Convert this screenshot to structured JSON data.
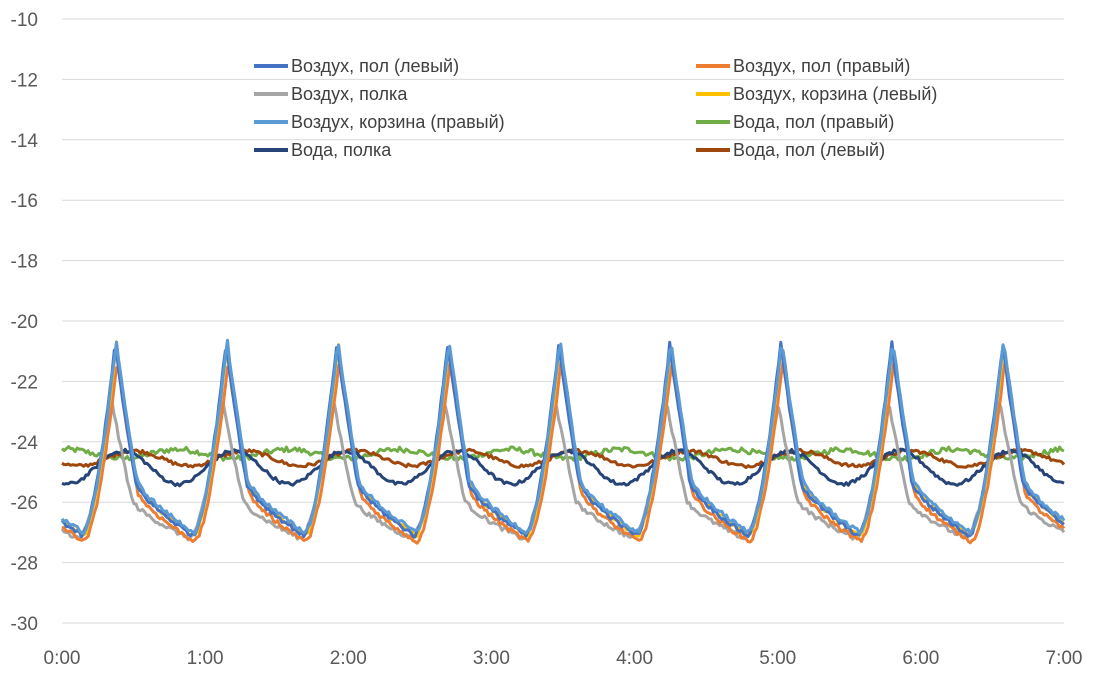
{
  "chart_data": {
    "type": "line",
    "title": "",
    "xlabel": "",
    "ylabel": "",
    "xlim": [
      0,
      7
    ],
    "ylim": [
      -30,
      -10
    ],
    "yticks": [
      -10,
      -12,
      -14,
      -16,
      -18,
      -20,
      -22,
      -24,
      -26,
      -28,
      -30
    ],
    "xtick_labels": [
      "0:00",
      "1:00",
      "2:00",
      "3:00",
      "4:00",
      "5:00",
      "6:00",
      "7:00"
    ],
    "grid": "horizontal",
    "legend_position": "top",
    "cycle_period_hours": 0.775,
    "series": [
      {
        "name": "Воздух, пол (левый)",
        "color": "#4472c4",
        "min": -27.1,
        "max": -20.7,
        "phase_peak": 0.65
      },
      {
        "name": "Воздух, пол (правый)",
        "color": "#ed7d31",
        "min": -27.3,
        "max": -21.3,
        "phase_peak": 0.67
      },
      {
        "name": "Воздух, полка",
        "color": "#a5a5a5",
        "min": -27.2,
        "max": -22.6,
        "phase_peak": 0.62
      },
      {
        "name": "Воздух, корзина (левый)",
        "color": "#ffc000",
        "min": -27.1,
        "max": -20.7,
        "phase_peak": 0.66
      },
      {
        "name": "Воздух, корзина (правый)",
        "color": "#5b9bd5",
        "min": -27.0,
        "max": -20.6,
        "phase_peak": 0.66
      },
      {
        "name": "Вода, пол (правый)",
        "color": "#70ad47",
        "mean": -24.4,
        "amplitude": 0.15
      },
      {
        "name": "Вода, полка",
        "color": "#264478",
        "min": -25.4,
        "max": -24.3,
        "phase_peak": 0.6
      },
      {
        "name": "Вода, пол (левый)",
        "color": "#9e480e",
        "min": -24.8,
        "max": -24.3,
        "phase_peak": 0.7
      }
    ]
  }
}
